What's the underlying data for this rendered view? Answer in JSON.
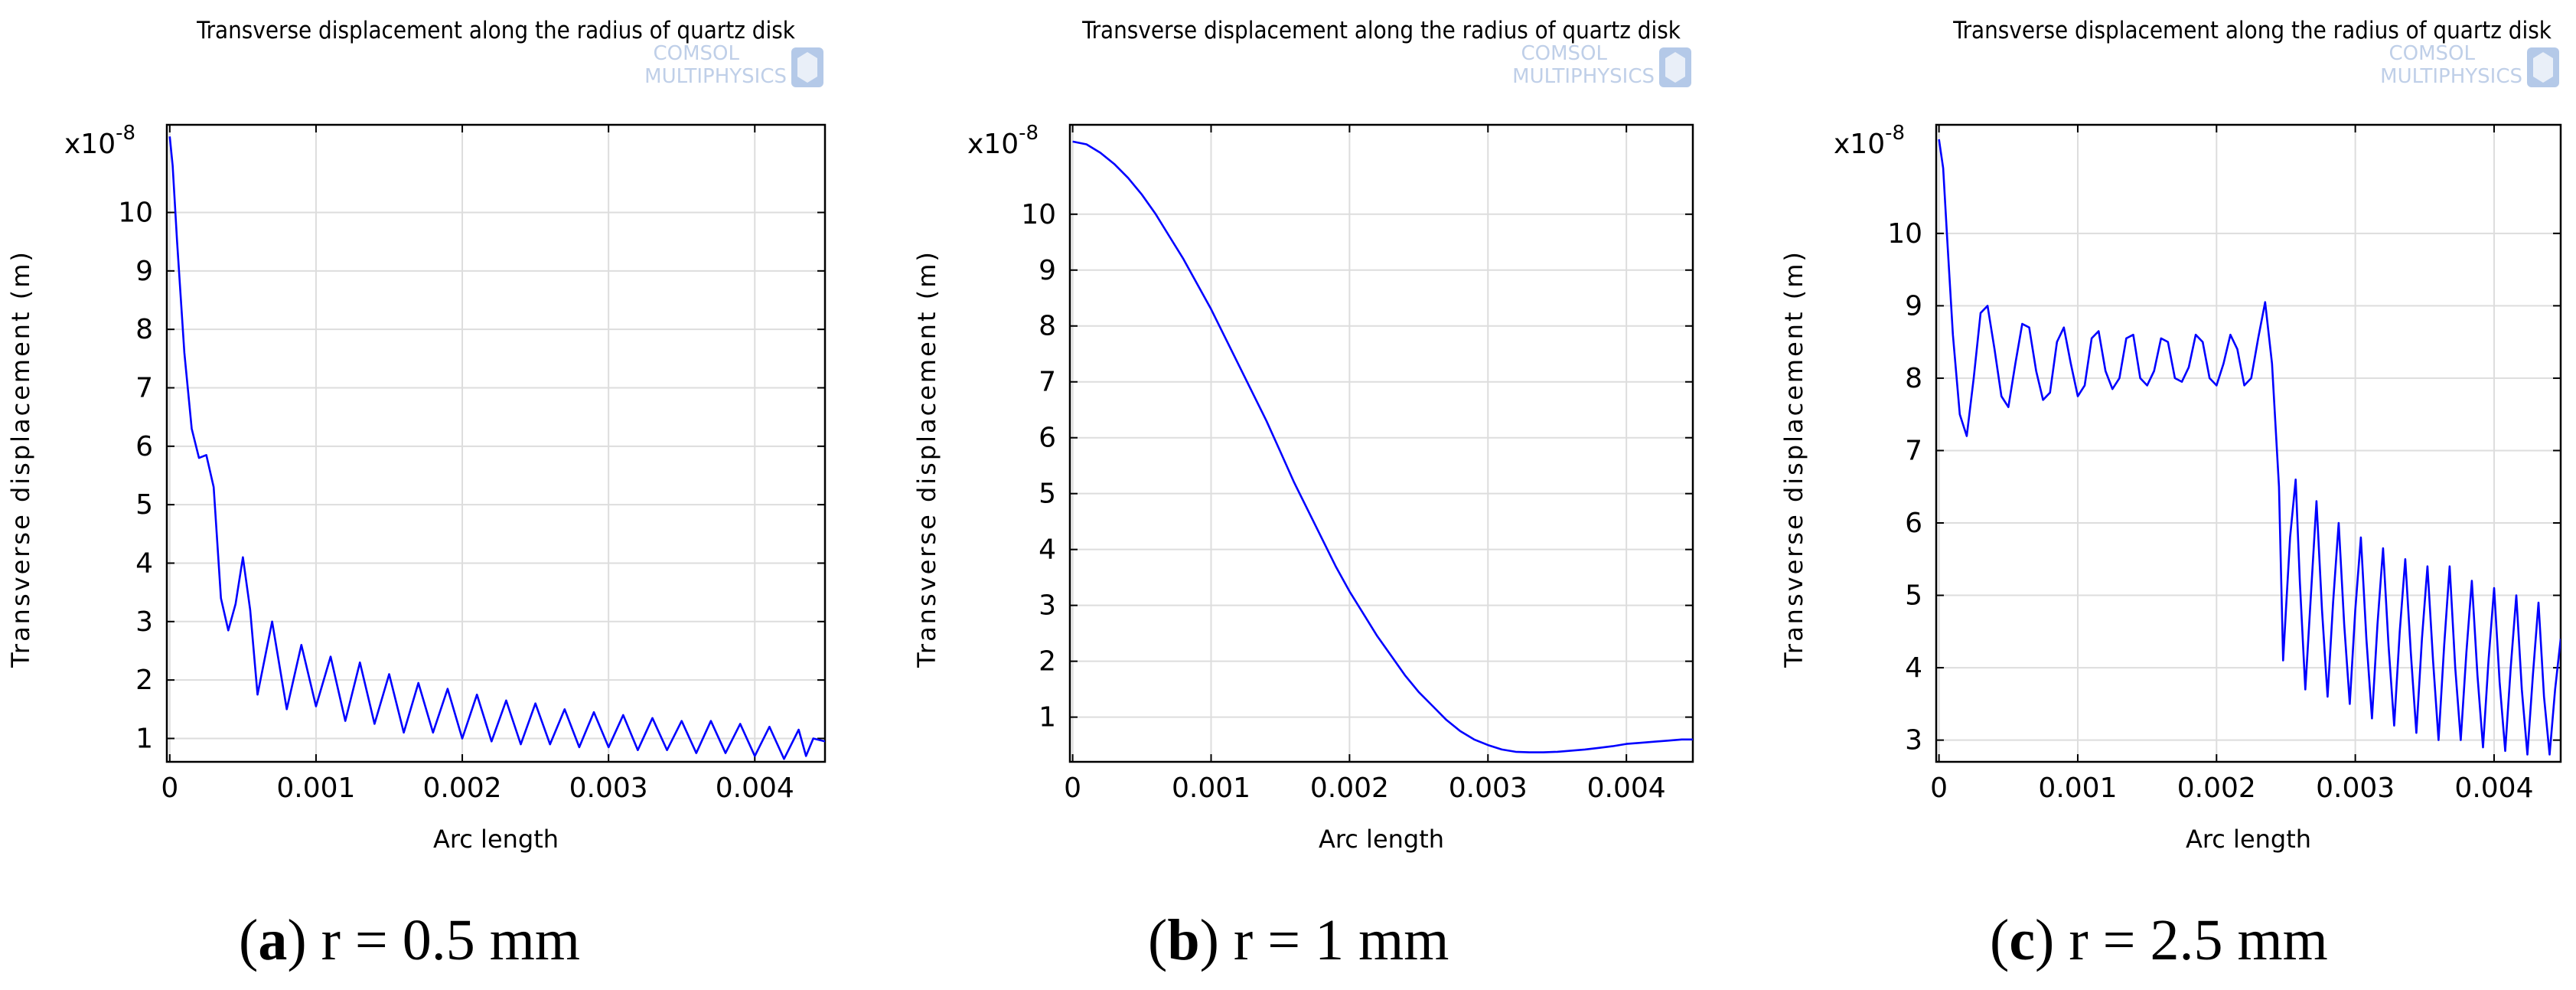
{
  "chart_data": [
    {
      "type": "line",
      "panel": "a",
      "title": "Transverse displacement along the radius of quartz disk",
      "watermark": [
        "COMSOL",
        "MULTIPHYSICS"
      ],
      "xlabel": "Arc length",
      "ylabel": "Transverse displacement (m)",
      "y_multiplier": "x10",
      "y_exponent": "-8",
      "xlim": [
        -2e-05,
        0.00448
      ],
      "ylim": [
        0.6,
        11.5
      ],
      "xticks": [
        0,
        0.001,
        0.002,
        0.003,
        0.004
      ],
      "xtick_labels": [
        "0",
        "0.001",
        "0.002",
        "0.003",
        "0.004"
      ],
      "yticks": [
        1,
        2,
        3,
        4,
        5,
        6,
        7,
        8,
        9,
        10
      ],
      "grid": true,
      "color": "#0000ff",
      "caption": {
        "letter": "a",
        "text": ") r = 0.5 mm"
      },
      "series": [
        {
          "x": [
            0,
            2e-05,
            5e-05,
            0.0001,
            0.00015,
            0.0002,
            0.00025,
            0.0003,
            0.00035,
            0.0004,
            0.00045,
            0.0005,
            0.00055,
            0.0006,
            0.0007,
            0.0008,
            0.0009,
            0.001,
            0.0011,
            0.0012,
            0.0013,
            0.0014,
            0.0015,
            0.0016,
            0.0017,
            0.0018,
            0.0019,
            0.002,
            0.0021,
            0.0022,
            0.0023,
            0.0024,
            0.0025,
            0.0026,
            0.0027,
            0.0028,
            0.0029,
            0.003,
            0.0031,
            0.0032,
            0.0033,
            0.0034,
            0.0035,
            0.0036,
            0.0037,
            0.0038,
            0.0039,
            0.004,
            0.0041,
            0.0042,
            0.0043,
            0.00435,
            0.0044,
            0.00448
          ],
          "y": [
            11.3,
            10.8,
            9.5,
            7.6,
            6.3,
            5.8,
            5.85,
            5.3,
            3.4,
            2.85,
            3.3,
            4.1,
            3.2,
            1.75,
            3.0,
            1.5,
            2.6,
            1.55,
            2.4,
            1.3,
            2.3,
            1.25,
            2.1,
            1.1,
            1.95,
            1.1,
            1.85,
            1.0,
            1.75,
            0.95,
            1.65,
            0.9,
            1.6,
            0.9,
            1.5,
            0.85,
            1.45,
            0.85,
            1.4,
            0.8,
            1.35,
            0.8,
            1.3,
            0.75,
            1.3,
            0.75,
            1.25,
            0.7,
            1.2,
            0.65,
            1.15,
            0.7,
            1.0,
            0.95
          ]
        }
      ]
    },
    {
      "type": "line",
      "panel": "b",
      "title": "Transverse displacement along the radius of quartz disk",
      "watermark": [
        "COMSOL",
        "MULTIPHYSICS"
      ],
      "xlabel": "Arc length",
      "ylabel": "Transverse displacement (m)",
      "y_multiplier": "x10",
      "y_exponent": "-8",
      "xlim": [
        -2e-05,
        0.00448
      ],
      "ylim": [
        0.2,
        11.6
      ],
      "xticks": [
        0,
        0.001,
        0.002,
        0.003,
        0.004
      ],
      "xtick_labels": [
        "0",
        "0.001",
        "0.002",
        "0.003",
        "0.004"
      ],
      "yticks": [
        1,
        2,
        3,
        4,
        5,
        6,
        7,
        8,
        9,
        10
      ],
      "grid": true,
      "color": "#0000ff",
      "caption": {
        "letter": "b",
        "text": ") r = 1 mm"
      },
      "series": [
        {
          "x": [
            0,
            0.0001,
            0.0002,
            0.0003,
            0.0004,
            0.0005,
            0.0006,
            0.0007,
            0.0008,
            0.0009,
            0.001,
            0.0011,
            0.0012,
            0.0013,
            0.0014,
            0.0015,
            0.0016,
            0.0017,
            0.0018,
            0.0019,
            0.002,
            0.0021,
            0.0022,
            0.0023,
            0.0024,
            0.0025,
            0.0026,
            0.0027,
            0.0028,
            0.0029,
            0.003,
            0.0031,
            0.0032,
            0.0033,
            0.0034,
            0.0035,
            0.0036,
            0.0037,
            0.0038,
            0.0039,
            0.004,
            0.0041,
            0.0042,
            0.0043,
            0.0044,
            0.00448
          ],
          "y": [
            11.3,
            11.25,
            11.1,
            10.9,
            10.65,
            10.35,
            10.0,
            9.6,
            9.2,
            8.75,
            8.3,
            7.8,
            7.3,
            6.8,
            6.3,
            5.75,
            5.2,
            4.7,
            4.2,
            3.7,
            3.25,
            2.85,
            2.45,
            2.1,
            1.75,
            1.45,
            1.2,
            0.95,
            0.75,
            0.6,
            0.5,
            0.42,
            0.38,
            0.37,
            0.37,
            0.38,
            0.4,
            0.42,
            0.45,
            0.48,
            0.52,
            0.54,
            0.56,
            0.58,
            0.6,
            0.6
          ]
        }
      ]
    },
    {
      "type": "line",
      "panel": "c",
      "title": "Transverse displacement along the radius of quartz disk",
      "watermark": [
        "COMSOL",
        "MULTIPHYSICS"
      ],
      "xlabel": "Arc length",
      "ylabel": "Transverse displacement (m)",
      "y_multiplier": "x10",
      "y_exponent": "-8",
      "xlim": [
        -2e-05,
        0.00448
      ],
      "ylim": [
        2.7,
        11.5
      ],
      "xticks": [
        0,
        0.001,
        0.002,
        0.003,
        0.004
      ],
      "xtick_labels": [
        "0",
        "0.001",
        "0.002",
        "0.003",
        "0.004"
      ],
      "yticks": [
        3,
        4,
        5,
        6,
        7,
        8,
        9,
        10
      ],
      "grid": true,
      "color": "#0000ff",
      "caption": {
        "letter": "c",
        "text": ") r = 2.5 mm"
      },
      "series": [
        {
          "x": [
            0,
            3e-05,
            6e-05,
            0.0001,
            0.00015,
            0.0002,
            0.00025,
            0.0003,
            0.00035,
            0.0004,
            0.00045,
            0.0005,
            0.00055,
            0.0006,
            0.00065,
            0.0007,
            0.00075,
            0.0008,
            0.00085,
            0.0009,
            0.00095,
            0.001,
            0.00105,
            0.0011,
            0.00115,
            0.0012,
            0.00125,
            0.0013,
            0.00135,
            0.0014,
            0.00145,
            0.0015,
            0.00155,
            0.0016,
            0.00165,
            0.0017,
            0.00175,
            0.0018,
            0.00185,
            0.0019,
            0.00195,
            0.002,
            0.00205,
            0.0021,
            0.00215,
            0.0022,
            0.00225,
            0.0023,
            0.00235,
            0.0024,
            0.00245,
            0.00248,
            0.0025,
            0.00253,
            0.00257,
            0.0026,
            0.00264,
            0.00268,
            0.00272,
            0.00276,
            0.0028,
            0.00284,
            0.00288,
            0.00292,
            0.00296,
            0.003,
            0.00304,
            0.00308,
            0.00312,
            0.00316,
            0.0032,
            0.00324,
            0.00328,
            0.00332,
            0.00336,
            0.0034,
            0.00344,
            0.00348,
            0.00352,
            0.00356,
            0.0036,
            0.00364,
            0.00368,
            0.00372,
            0.00376,
            0.0038,
            0.00384,
            0.00388,
            0.00392,
            0.00396,
            0.004,
            0.00404,
            0.00408,
            0.00412,
            0.00416,
            0.0042,
            0.00424,
            0.00428,
            0.00432,
            0.00436,
            0.0044,
            0.00444,
            0.00448
          ],
          "y": [
            11.3,
            10.9,
            9.9,
            8.6,
            7.5,
            7.2,
            8.0,
            8.9,
            9.0,
            8.4,
            7.75,
            7.6,
            8.2,
            8.75,
            8.7,
            8.1,
            7.7,
            7.8,
            8.5,
            8.7,
            8.2,
            7.75,
            7.9,
            8.55,
            8.65,
            8.1,
            7.85,
            8.0,
            8.55,
            8.6,
            8.0,
            7.9,
            8.1,
            8.55,
            8.5,
            8.0,
            7.95,
            8.15,
            8.6,
            8.5,
            8.0,
            7.9,
            8.2,
            8.6,
            8.4,
            7.9,
            8.0,
            8.55,
            9.05,
            8.2,
            6.5,
            4.1,
            4.8,
            5.8,
            6.6,
            5.2,
            3.7,
            5.0,
            6.3,
            4.8,
            3.6,
            4.9,
            6.0,
            4.6,
            3.5,
            4.8,
            5.8,
            4.4,
            3.3,
            4.6,
            5.65,
            4.3,
            3.2,
            4.5,
            5.5,
            4.2,
            3.1,
            4.4,
            5.4,
            4.1,
            3.0,
            4.3,
            5.4,
            4.0,
            3.0,
            4.2,
            5.2,
            3.9,
            2.9,
            4.1,
            5.1,
            3.8,
            2.85,
            4.0,
            5.0,
            3.7,
            2.8,
            3.9,
            4.9,
            3.6,
            2.8,
            3.7,
            4.4
          ]
        }
      ]
    }
  ]
}
